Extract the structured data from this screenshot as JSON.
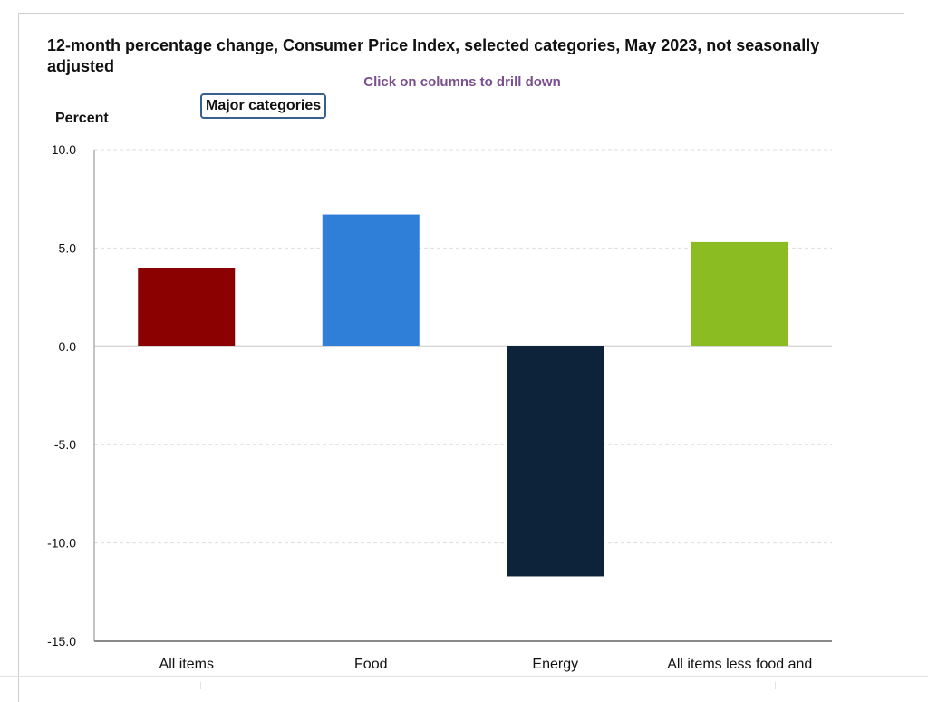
{
  "header": {
    "title": "12-month percentage change, Consumer Price Index, selected categories, May 2023, not seasonally adjusted",
    "hint": "Click on columns to drill down",
    "category_button": "Major categories"
  },
  "chart_data": {
    "type": "bar",
    "title": "12-month percentage change, Consumer Price Index, selected categories, May 2023, not seasonally adjusted",
    "ylabel": "Percent",
    "xlabel": "",
    "categories": [
      "All items",
      "Food",
      "Energy",
      "All items less food and"
    ],
    "values": [
      4.0,
      6.7,
      -11.7,
      5.3
    ],
    "colors": [
      "#8b0000",
      "#2f7ed8",
      "#0d233a",
      "#8bbc21"
    ],
    "ylim": [
      -15,
      10
    ],
    "yticks": [
      10,
      5,
      0,
      -5,
      -10,
      -15
    ],
    "ytick_labels": [
      "10.0",
      "5.0",
      "0.0",
      "-5.0",
      "-10.0",
      "-15.0"
    ],
    "grid": true,
    "legend": "none"
  }
}
